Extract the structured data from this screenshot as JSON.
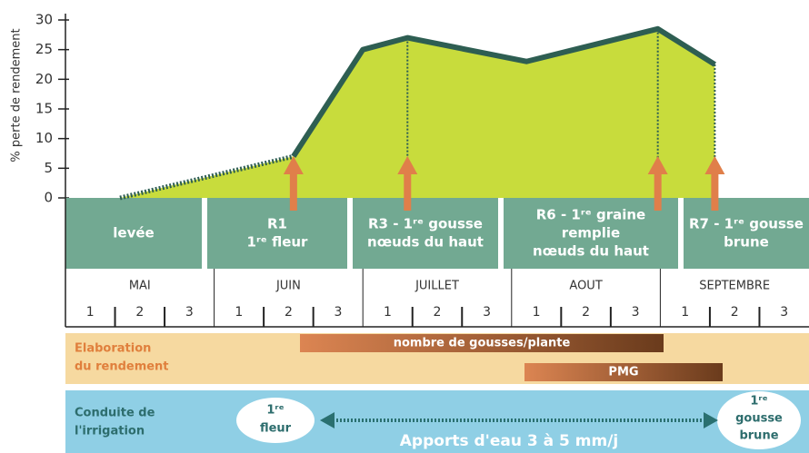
{
  "chart_data": {
    "type": "area",
    "y_label": "% perte de rendement",
    "x": [
      1.1,
      4.6,
      6,
      6.9,
      9.3,
      11.95,
      13.1
    ],
    "values": [
      0,
      7,
      25,
      27,
      23,
      28.5,
      22.5
    ],
    "color": "#c8dc3c",
    "line_color": "#2e5e52",
    "xlim": [
      0,
      15
    ],
    "ylim": [
      0,
      30
    ],
    "yticks": [
      0,
      5,
      10,
      15,
      20,
      25,
      30
    ]
  },
  "stages": [
    [
      "levée"
    ],
    [
      "R1",
      "1ʳᵉ fleur"
    ],
    [
      "R3 - 1ʳᵉ gousse",
      "nœuds du haut"
    ],
    [
      "R6 - 1ʳᵉ graine",
      "remplie",
      "nœuds du haut"
    ],
    [
      "R7 - 1ʳᵉ gousse",
      "brune"
    ]
  ],
  "months": [
    "MAI",
    "JUIN",
    "JUILLET",
    "AOUT",
    "SEPTEMBRE"
  ],
  "decades": [
    "1",
    "2",
    "3"
  ],
  "yield_band": {
    "label": [
      "Elaboration",
      "du rendement"
    ],
    "bars": [
      "nombre de gousses/plante",
      "PMG"
    ]
  },
  "irrigation_band": {
    "label": [
      "Conduite de",
      "l'irrigation"
    ],
    "start": [
      "1ʳᵉ",
      "fleur"
    ],
    "end": [
      "1ʳᵉ",
      "gousse",
      "brune"
    ],
    "note": "Apports d'eau 3 à 5 mm/j"
  }
}
